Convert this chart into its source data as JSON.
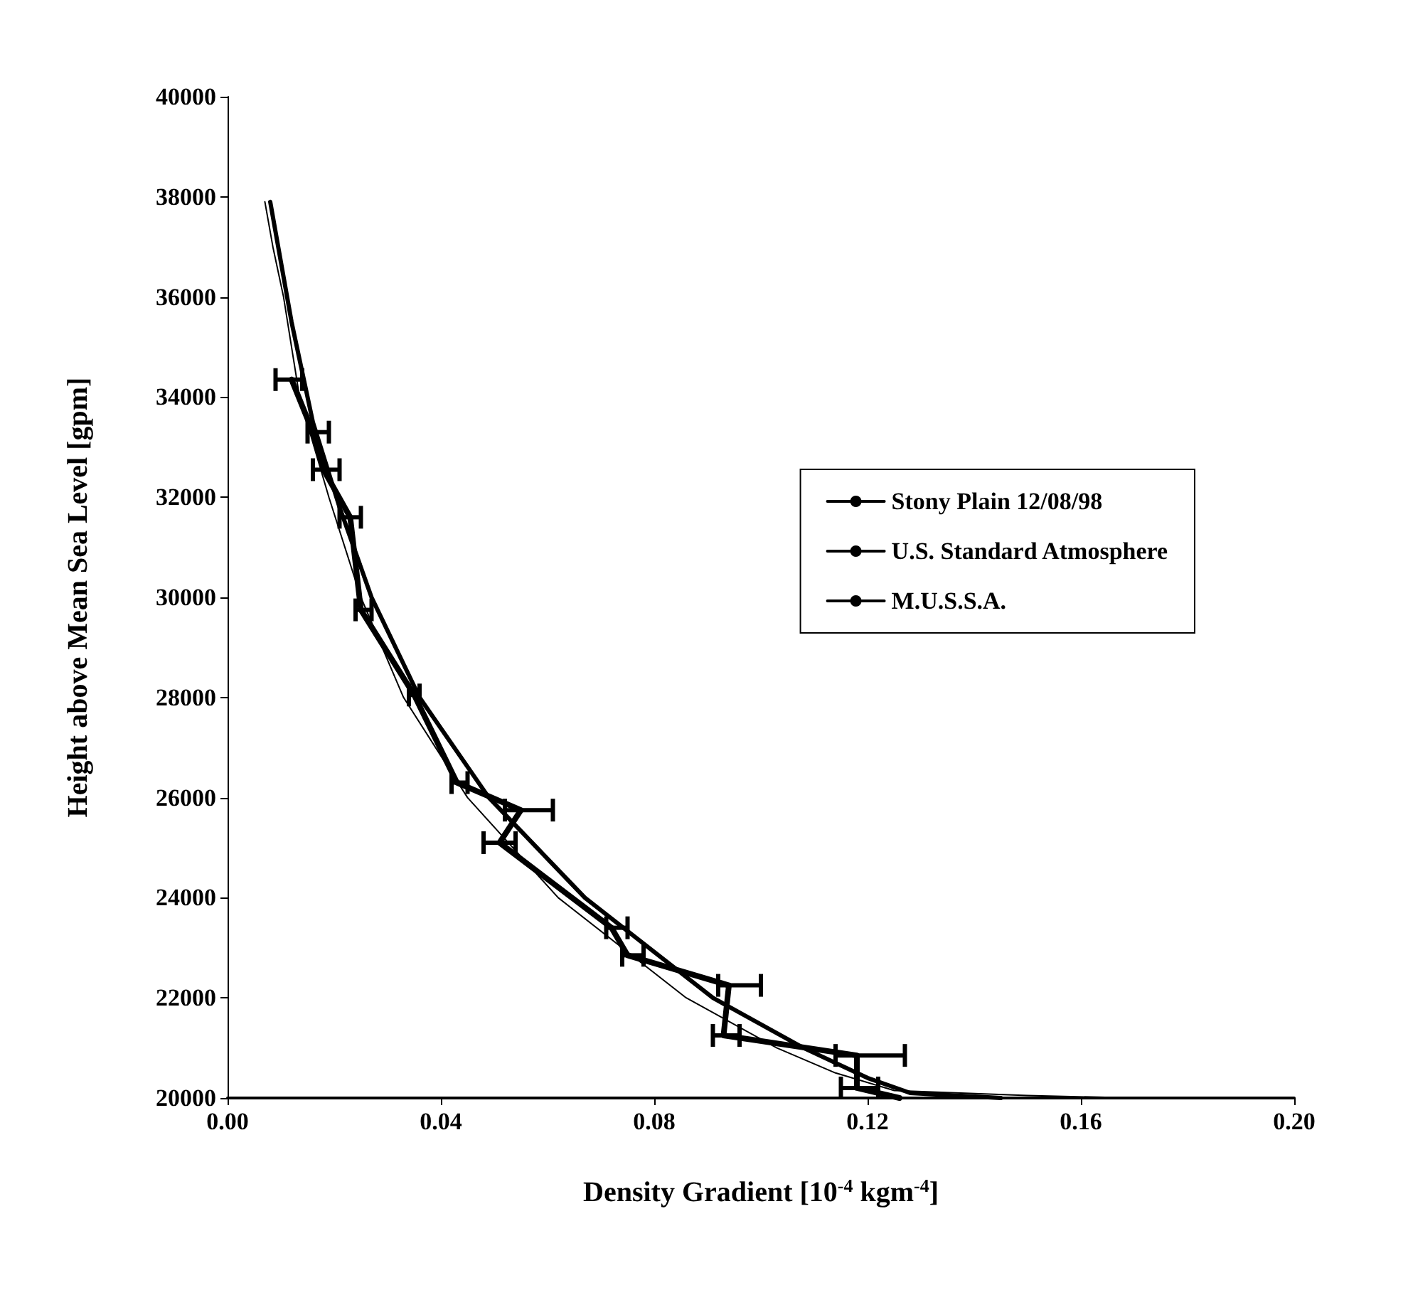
{
  "chart_data": {
    "type": "line",
    "xlabel": "Density Gradient [10$^{-4}$ kgm$^{-4}$]",
    "ylabel": "Height above Mean Sea Level [gpm]",
    "xlim": [
      0,
      0.2
    ],
    "xticks": [
      {
        "value": 0,
        "label": "0.00"
      },
      {
        "value": 0.04,
        "label": "0.04"
      },
      {
        "value": 0.08,
        "label": "0.08"
      },
      {
        "value": 0.12,
        "label": "0.12"
      },
      {
        "value": 0.16,
        "label": "0.16"
      },
      {
        "value": 0.2,
        "label": "0.20"
      }
    ],
    "ylim": [
      20000,
      40000
    ],
    "yticks": [
      20000,
      22000,
      24000,
      26000,
      28000,
      30000,
      32000,
      34000,
      36000,
      38000,
      40000
    ],
    "grid": false,
    "legend": "right",
    "marker": "none",
    "line_style": "solid",
    "series": [
      {
        "name": "Stony Plain 12/08/98",
        "color": "#000000",
        "x": [
          0.012,
          0.016,
          0.018,
          0.023,
          0.025,
          0.035,
          0.043,
          0.055,
          0.051,
          0.072,
          0.075,
          0.094,
          0.093,
          0.118,
          0.118,
          0.126
        ],
        "values": [
          34350,
          33300,
          32550,
          31600,
          29750,
          28050,
          26300,
          25750,
          25100,
          23400,
          22850,
          22250,
          21250,
          20850,
          20200,
          20000
        ],
        "xerrors": [
          [
            0.009,
            0.014
          ],
          [
            0.015,
            0.019
          ],
          [
            0.016,
            0.021
          ],
          [
            0.021,
            0.025
          ],
          [
            0.024,
            0.027
          ],
          [
            0.034,
            0.036
          ],
          [
            0.042,
            0.045
          ],
          [
            0.052,
            0.061
          ],
          [
            0.048,
            0.054
          ],
          [
            0.071,
            0.075
          ],
          [
            0.074,
            0.078
          ],
          [
            0.092,
            0.1
          ],
          [
            0.091,
            0.096
          ],
          [
            0.114,
            0.127
          ],
          [
            0.115,
            0.122
          ],
          null
        ]
      },
      {
        "name": "U.S. Standard Atmosphere",
        "color": "#000000",
        "x": [
          0.007,
          0.0085,
          0.0105,
          0.0135,
          0.019,
          0.025,
          0.033,
          0.045,
          0.062,
          0.086,
          0.103,
          0.114,
          0.125,
          0.15,
          0.17
        ],
        "values": [
          37900,
          37000,
          36000,
          34000,
          32000,
          30000,
          28000,
          26000,
          24000,
          22000,
          21000,
          20500,
          20150,
          20050,
          20000
        ]
      },
      {
        "name": "M.U.S.S.A.",
        "color": "#000000",
        "x": [
          0.008,
          0.0095,
          0.012,
          0.016,
          0.021,
          0.027,
          0.036,
          0.049,
          0.067,
          0.091,
          0.108,
          0.12,
          0.128,
          0.145
        ],
        "values": [
          37900,
          37000,
          35500,
          33500,
          31800,
          30000,
          28000,
          26000,
          24000,
          22000,
          21000,
          20400,
          20100,
          20000
        ]
      }
    ]
  }
}
